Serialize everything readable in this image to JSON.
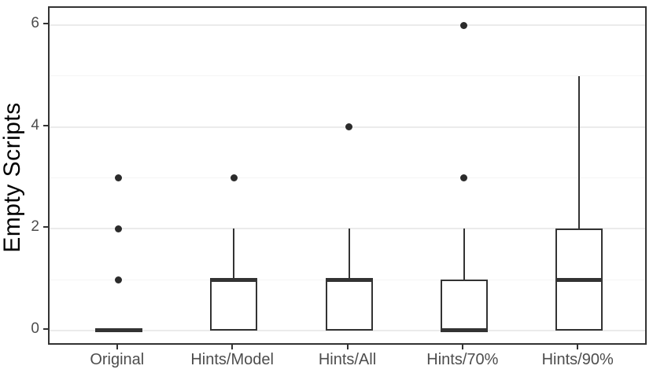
{
  "chart_data": {
    "type": "boxplot",
    "title": "",
    "xlabel": "",
    "ylabel": "Empty Scripts",
    "categories": [
      "Original",
      "Hints/Model",
      "Hints/All",
      "Hints/70%",
      "Hints/90%"
    ],
    "series": [
      {
        "category": "Original",
        "min": 0,
        "q1": 0,
        "median": 0,
        "q3": 0,
        "max": 0,
        "outliers": [
          1,
          2,
          3
        ]
      },
      {
        "category": "Hints/Model",
        "min": 0,
        "q1": 0,
        "median": 1,
        "q3": 1,
        "max": 2,
        "outliers": [
          3
        ]
      },
      {
        "category": "Hints/All",
        "min": 0,
        "q1": 0,
        "median": 1,
        "q3": 1,
        "max": 2,
        "outliers": [
          4
        ]
      },
      {
        "category": "Hints/70%",
        "min": 0,
        "q1": 0,
        "median": 0,
        "q3": 1,
        "max": 2,
        "outliers": [
          3,
          6
        ]
      },
      {
        "category": "Hints/90%",
        "min": 0,
        "q1": 0,
        "median": 1,
        "q3": 2,
        "max": 5,
        "outliers": []
      }
    ],
    "y_axis": {
      "ticks": [
        0,
        2,
        4,
        6
      ],
      "minor_ticks": [
        1,
        3,
        5
      ],
      "range": [
        -0.31,
        6.34
      ]
    },
    "grid": "on",
    "legend": "none",
    "colors": {
      "box_line": "#333333",
      "outlier": "#2b2b2b",
      "grid_major": "#ebebeb",
      "grid_minor": "#f4f4f4",
      "panel_border": "#333333",
      "tick_label": "#4d4d4d",
      "axis_title": "#000000"
    }
  }
}
